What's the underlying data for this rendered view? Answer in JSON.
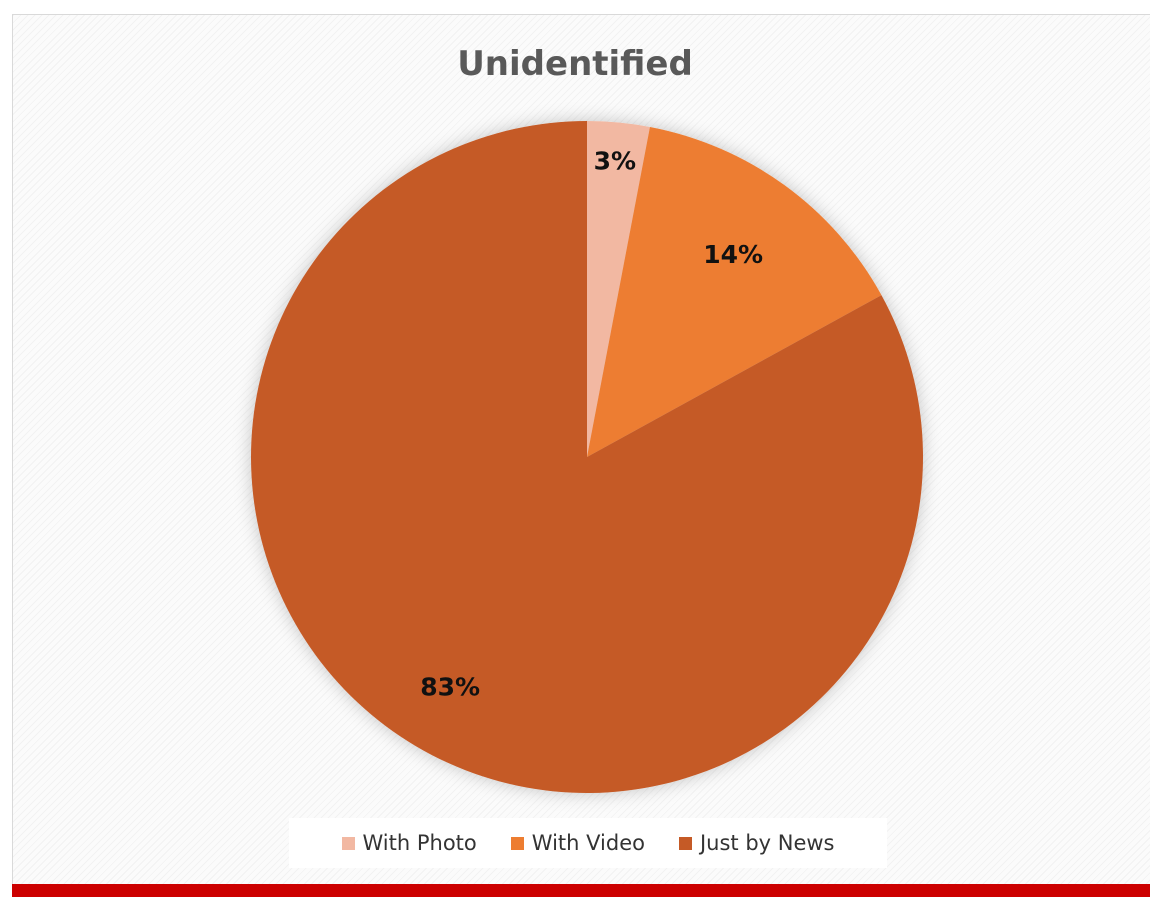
{
  "chart_data": {
    "type": "pie",
    "title": "Unidentified",
    "categories": [
      "With Photo",
      "With Video",
      "Just by News"
    ],
    "values": [
      3,
      14,
      83
    ],
    "labels": [
      "3%",
      "14%",
      "83%"
    ],
    "colors": [
      "#f2b8a2",
      "#ed7d31",
      "#c55a26"
    ],
    "start_angle": "12 o'clock",
    "direction": "clockwise",
    "legend_position": "bottom"
  },
  "legend": {
    "items": [
      {
        "label": "With Photo",
        "color": "#f2b8a2"
      },
      {
        "label": "With Video",
        "color": "#ed7d31"
      },
      {
        "label": "Just by News",
        "color": "#c55a26"
      }
    ]
  },
  "accent": {
    "bottom_bar_color": "#cc0000"
  }
}
